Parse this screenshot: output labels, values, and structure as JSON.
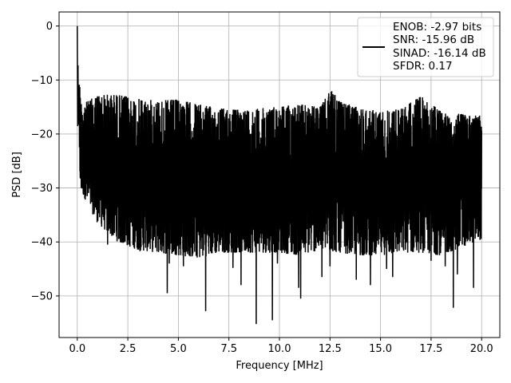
{
  "chart_data": {
    "type": "line",
    "title": "",
    "xlabel": "Frequency [MHz]",
    "ylabel": "PSD [dB]",
    "xlim": [
      -0.9,
      20.9
    ],
    "ylim": [
      -57.7,
      2.6
    ],
    "x_ticks": [
      0.0,
      2.5,
      5.0,
      7.5,
      10.0,
      12.5,
      15.0,
      17.5,
      20.0
    ],
    "x_tick_labels": [
      "0.0",
      "2.5",
      "5.0",
      "7.5",
      "10.0",
      "12.5",
      "15.0",
      "17.5",
      "20.0"
    ],
    "y_ticks": [
      0,
      -10,
      -20,
      -30,
      -40,
      -50
    ],
    "y_tick_labels": [
      "0",
      "−10",
      "−20",
      "−30",
      "−40",
      "−50"
    ],
    "grid": true,
    "legend_position": "top-right",
    "line_color": "#000000",
    "series": [
      {
        "name": "ENOB: -2.97 bits\nSNR: -15.96 dB\nSINAD: -16.14 dB\nSFDR: 0.17",
        "legend_lines": [
          "ENOB: -2.97 bits",
          "SNR: -15.96 dB",
          "SINAD: -16.14 dB",
          "SFDR: 0.17"
        ],
        "x_range": [
          0.0,
          20.0
        ],
        "upper_envelope": [
          [
            0.0,
            0.0
          ],
          [
            0.02,
            -3.0
          ],
          [
            0.05,
            -6.0
          ],
          [
            0.1,
            -10.0
          ],
          [
            0.2,
            -14.0
          ],
          [
            0.5,
            -14.0
          ],
          [
            1.0,
            -12.7
          ],
          [
            2.0,
            -12.7
          ],
          [
            3.0,
            -13.5
          ],
          [
            4.0,
            -13.8
          ],
          [
            5.0,
            -13.6
          ],
          [
            6.0,
            -14.5
          ],
          [
            7.0,
            -15.2
          ],
          [
            8.0,
            -15.5
          ],
          [
            9.0,
            -15.3
          ],
          [
            10.0,
            -14.8
          ],
          [
            11.0,
            -14.5
          ],
          [
            12.0,
            -15.0
          ],
          [
            12.6,
            -11.5
          ],
          [
            13.0,
            -14.0
          ],
          [
            14.0,
            -15.2
          ],
          [
            15.0,
            -15.8
          ],
          [
            16.0,
            -15.3
          ],
          [
            17.0,
            -13.0
          ],
          [
            18.0,
            -15.8
          ],
          [
            19.0,
            -16.3
          ],
          [
            20.0,
            -16.5
          ]
        ],
        "lower_envelope": [
          [
            0.0,
            -29.0
          ],
          [
            0.5,
            -33.0
          ],
          [
            1.0,
            -36.5
          ],
          [
            2.0,
            -40.0
          ],
          [
            3.0,
            -41.5
          ],
          [
            4.0,
            -42.0
          ],
          [
            5.0,
            -42.5
          ],
          [
            6.0,
            -43.0
          ],
          [
            7.0,
            -42.0
          ],
          [
            8.0,
            -42.0
          ],
          [
            9.0,
            -42.0
          ],
          [
            10.0,
            -42.0
          ],
          [
            11.0,
            -42.5
          ],
          [
            12.0,
            -41.5
          ],
          [
            13.0,
            -42.0
          ],
          [
            14.0,
            -42.5
          ],
          [
            15.0,
            -42.5
          ],
          [
            16.0,
            -42.0
          ],
          [
            17.0,
            -42.0
          ],
          [
            18.0,
            -42.5
          ],
          [
            19.0,
            -41.0
          ],
          [
            20.0,
            -39.5
          ]
        ],
        "deep_nulls": [
          [
            1.5,
            -40.5
          ],
          [
            3.1,
            -41.7
          ],
          [
            4.45,
            -49.5
          ],
          [
            4.55,
            -44.0
          ],
          [
            5.25,
            -44.5
          ],
          [
            6.35,
            -52.8
          ],
          [
            7.7,
            -44.8
          ],
          [
            8.1,
            -48.0
          ],
          [
            8.85,
            -55.2
          ],
          [
            9.65,
            -54.5
          ],
          [
            9.9,
            -44.0
          ],
          [
            10.95,
            -48.5
          ],
          [
            11.05,
            -50.5
          ],
          [
            12.1,
            -46.5
          ],
          [
            12.5,
            -44.5
          ],
          [
            13.8,
            -47.0
          ],
          [
            14.5,
            -48.0
          ],
          [
            15.3,
            -45.0
          ],
          [
            15.6,
            -46.5
          ],
          [
            17.5,
            -43.5
          ],
          [
            18.2,
            -44.5
          ],
          [
            18.6,
            -52.2
          ],
          [
            18.8,
            -46.0
          ],
          [
            19.6,
            -48.5
          ]
        ]
      }
    ]
  }
}
